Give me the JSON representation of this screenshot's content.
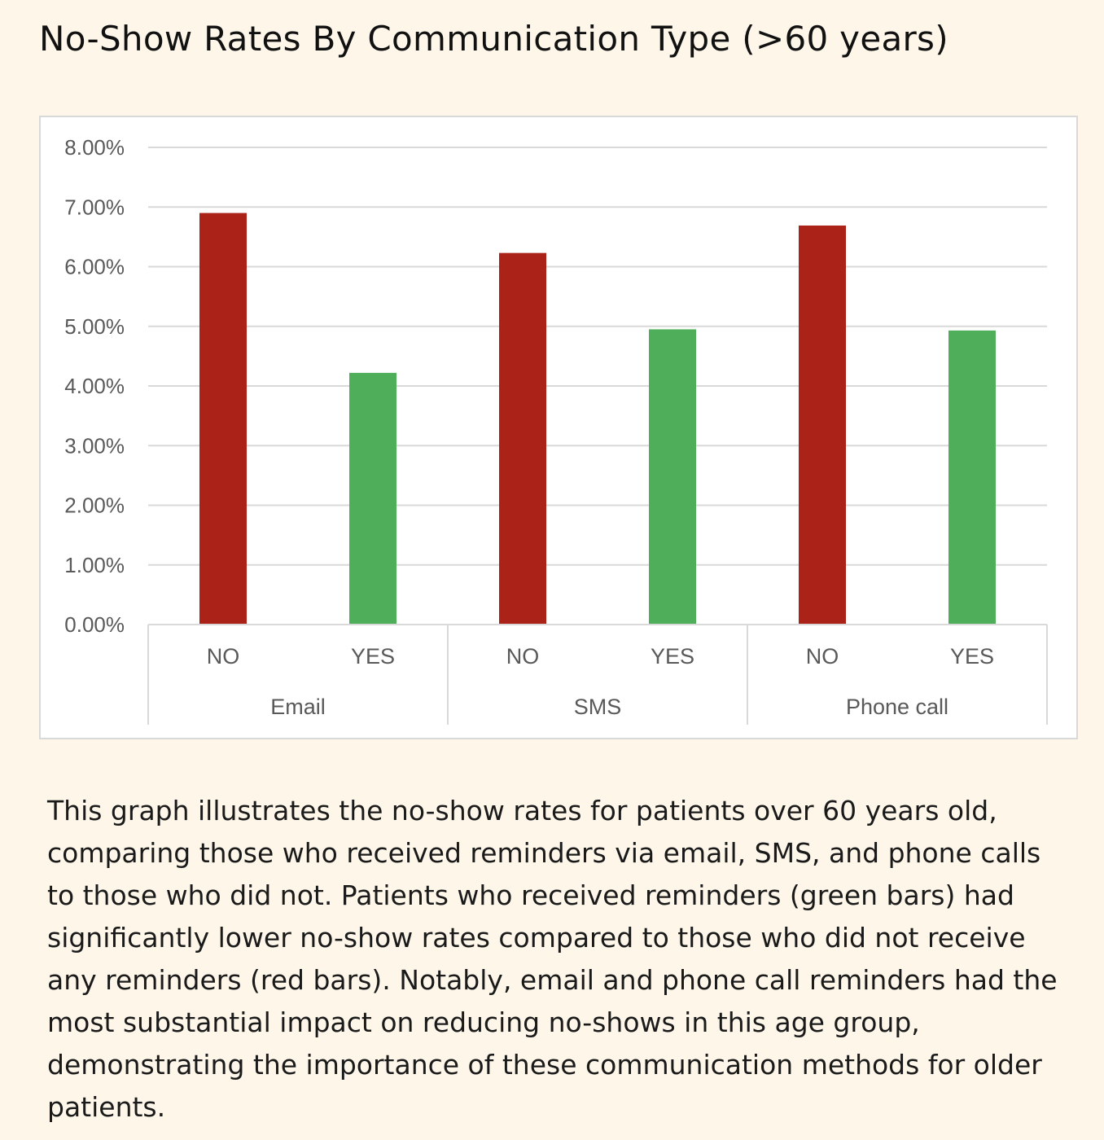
{
  "title": "No-Show Rates By Communication Type (>60 years)",
  "caption": "This graph illustrates the no-show rates for patients over 60 years old, comparing those who received reminders via email, SMS, and phone calls to those who did not. Patients who received reminders (green bars) had significantly lower no-show rates compared to those who did not receive any reminders (red bars). Notably, email and phone call reminders had the most substantial impact on reducing no-shows in this age group, demonstrating the importance of these communication methods for older patients.",
  "colors": {
    "no": "#ab2318",
    "yes": "#4fae5a",
    "grid": "#d9d9d9",
    "axis_text": "#595959",
    "background": "#fdf6e9"
  },
  "chart_data": {
    "type": "bar",
    "title": "",
    "xlabel": "",
    "ylabel": "",
    "ylim": [
      0,
      8
    ],
    "y_ticks": [
      "0.00%",
      "1.00%",
      "2.00%",
      "3.00%",
      "4.00%",
      "5.00%",
      "6.00%",
      "7.00%",
      "8.00%"
    ],
    "grid": true,
    "legend": "none",
    "groups": [
      {
        "name": "Email",
        "bars": [
          {
            "category": "NO",
            "value": 6.9
          },
          {
            "category": "YES",
            "value": 4.22
          }
        ]
      },
      {
        "name": "SMS",
        "bars": [
          {
            "category": "NO",
            "value": 6.23
          },
          {
            "category": "YES",
            "value": 4.95
          }
        ]
      },
      {
        "name": "Phone call",
        "bars": [
          {
            "category": "NO",
            "value": 6.69
          },
          {
            "category": "YES",
            "value": 4.93
          }
        ]
      }
    ]
  }
}
